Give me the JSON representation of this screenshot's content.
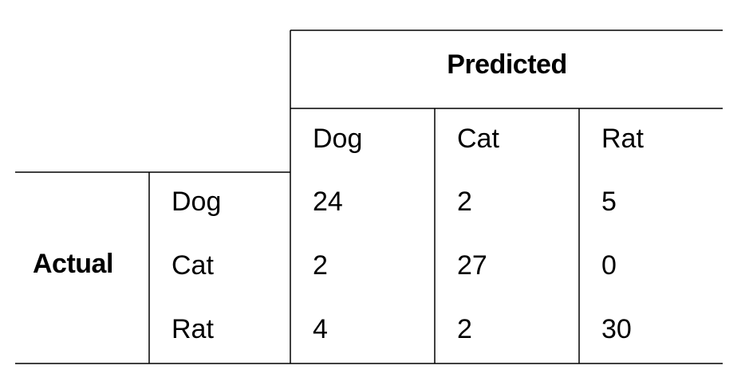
{
  "chart_data": {
    "type": "table",
    "row_header": "Actual",
    "column_header": "Predicted",
    "columns": [
      "Dog",
      "Cat",
      "Rat"
    ],
    "rows": [
      {
        "label": "Dog",
        "values": [
          24,
          2,
          5
        ]
      },
      {
        "label": "Cat",
        "values": [
          2,
          27,
          0
        ]
      },
      {
        "label": "Rat",
        "values": [
          4,
          2,
          30
        ]
      }
    ]
  }
}
